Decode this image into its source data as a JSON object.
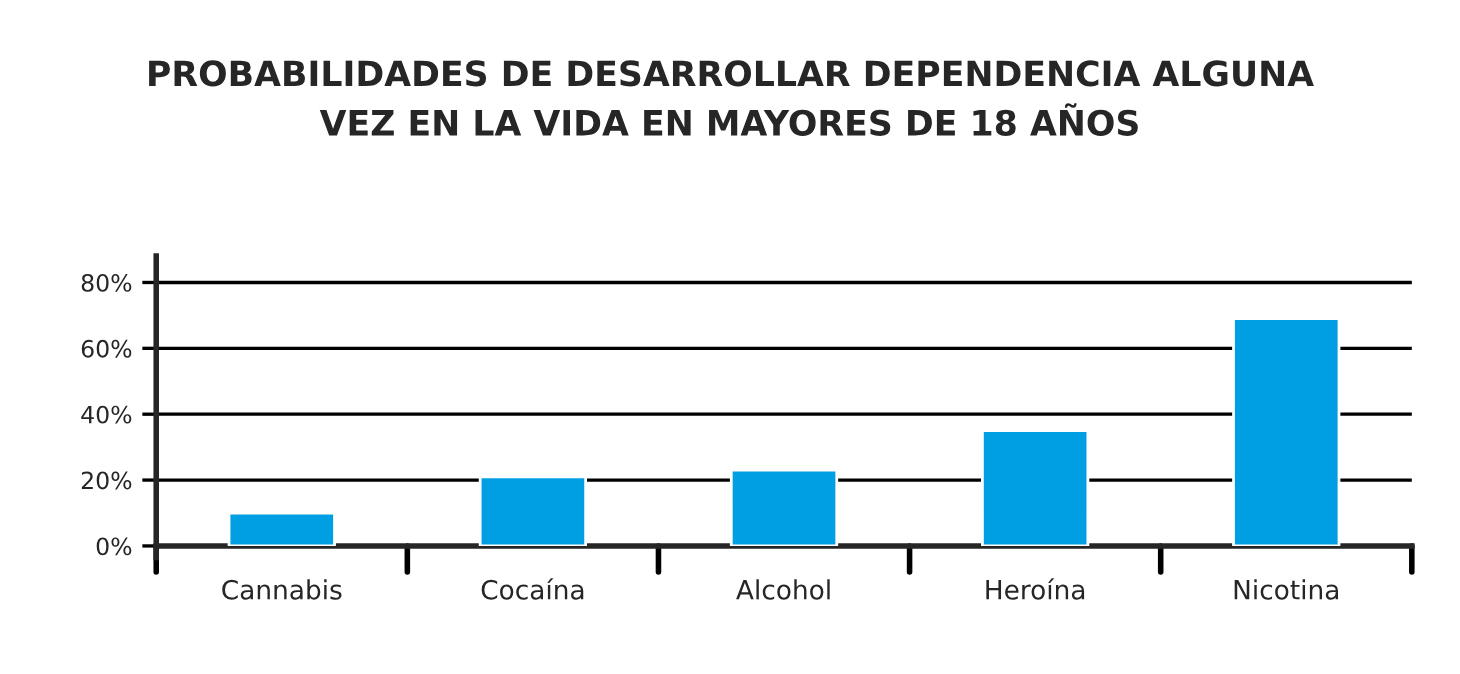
{
  "chart_data": {
    "type": "bar",
    "title": "PROBABILIDADES DE DESARROLLAR DEPENDENCIA ALGUNA\nVEZ EN LA VIDA EN MAYORES DE 18 AÑOS",
    "categories": [
      "Cannabis",
      "Cocaína",
      "Alcohol",
      "Heroína",
      "Nicotina"
    ],
    "values": [
      10,
      21,
      23,
      35,
      69
    ],
    "color": "#009fe3",
    "ylim": [
      0,
      88
    ],
    "yticks": [
      {
        "value": 0,
        "label": "0%"
      },
      {
        "value": 20,
        "label": "20%"
      },
      {
        "value": 40,
        "label": "40%"
      },
      {
        "value": 60,
        "label": "60%"
      },
      {
        "value": 80,
        "label": "80%"
      }
    ],
    "grid": "y"
  }
}
